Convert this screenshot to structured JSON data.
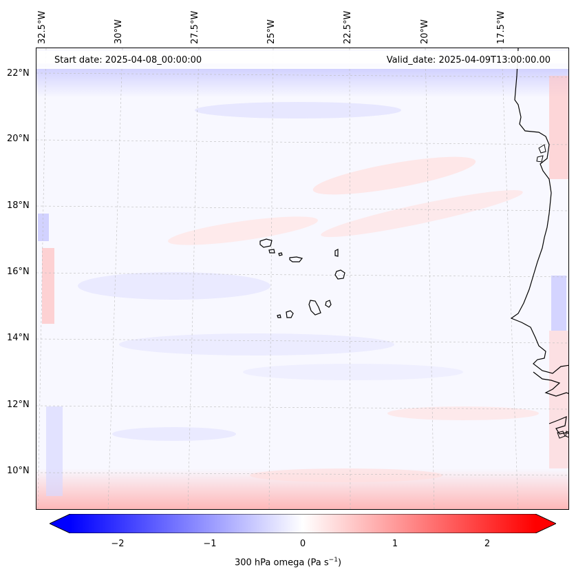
{
  "map": {
    "lon_labels": [
      "32.5°W",
      "30°W",
      "27.5°W",
      "25°W",
      "22.5°W",
      "20°W",
      "17.5°W"
    ],
    "lat_labels": [
      "22°N",
      "20°N",
      "18°N",
      "16°N",
      "14°N",
      "12°N",
      "10°N"
    ],
    "start_date": "Start date: 2025-04-08_00:00:00",
    "valid_date": "Valid_date: 2025-04-09T13:00:00.00"
  },
  "colorbar": {
    "ticks": [
      "−2",
      "−1",
      "0",
      "1",
      "2"
    ],
    "label": "300 hPa omega (Pa s",
    "label_sup": "−1",
    "label_end": ")",
    "min_color": "#0000ff",
    "mid_color": "#ffffff",
    "max_color": "#ff0000",
    "range": [
      -2.6,
      2.6
    ]
  }
}
